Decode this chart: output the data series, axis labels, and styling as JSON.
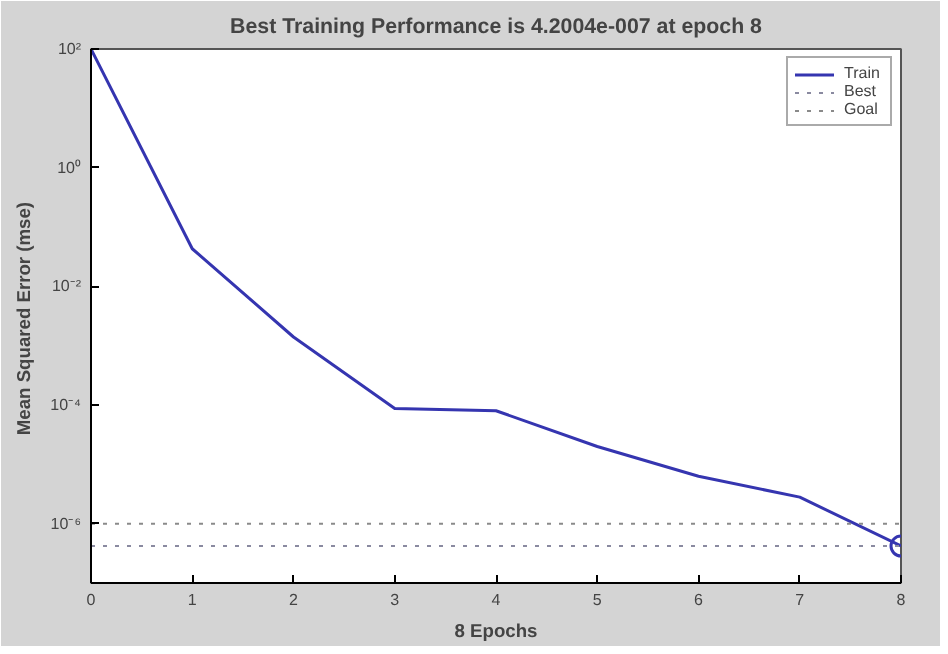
{
  "chart_data": {
    "type": "line",
    "title": "Best Training Performance is 4.2004e-007 at epoch 8",
    "xlabel": "8 Epochs",
    "ylabel": "Mean Squared Error  (mse)",
    "x": [
      0,
      1,
      2,
      3,
      4,
      5,
      6,
      7,
      8
    ],
    "series": [
      {
        "name": "Train",
        "color": "#3535b0",
        "values": [
          100,
          0.043,
          0.0014,
          8.7e-05,
          8e-05,
          2e-05,
          6.3e-06,
          2.8e-06,
          4.2004e-07
        ]
      },
      {
        "type": "scatter",
        "color": "#3535b0",
        "x": [
          8
        ],
        "values": [
          4.2004e-07
        ],
        "marker": "circle"
      }
    ],
    "ref_lines": [
      {
        "axis": "y",
        "value": 4.2004e-07,
        "label": "Best",
        "color": "#8a8aa0",
        "line_style": "dotted"
      },
      {
        "axis": "y",
        "value": 1e-06,
        "label": "Goal",
        "color": "#8a8a8a",
        "line_style": "dotted"
      }
    ],
    "log": "y",
    "xlim": [
      0,
      8
    ],
    "ylim": [
      1e-07,
      100
    ],
    "xticks": [
      0,
      1,
      2,
      3,
      4,
      5,
      6,
      7,
      8
    ],
    "yticks": [
      {
        "value": 100,
        "label": "10²"
      },
      {
        "value": 1,
        "label": "10⁰"
      },
      {
        "value": 0.01,
        "label": "10⁻²"
      },
      {
        "value": 0.0001,
        "label": "10⁻⁴"
      },
      {
        "value": 1e-06,
        "label": "10⁻⁶"
      }
    ],
    "legend": "top right",
    "grid": false
  }
}
